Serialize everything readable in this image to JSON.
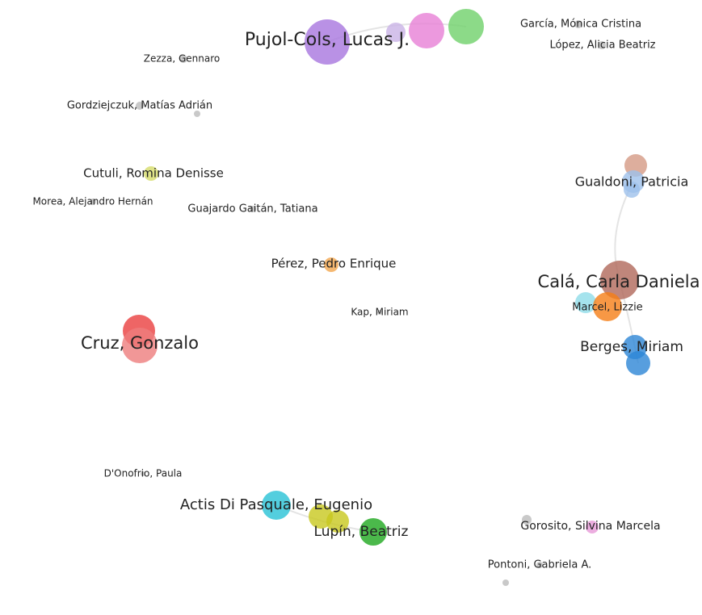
{
  "nodes": [
    {
      "label": "Pujol-Cols, Lucas J."
    },
    {
      "label": "García, Mónica Cristina"
    },
    {
      "label": "López, Alicia Beatriz"
    },
    {
      "label": "Zezza, Gennaro"
    },
    {
      "label": "Gordziejczuk, Matías Adrián"
    },
    {
      "label": "Cutuli, Romina Denisse"
    },
    {
      "label": "Morea, Alejandro Hernán"
    },
    {
      "label": "Guajardo Gaitán, Tatiana"
    },
    {
      "label": "Pérez, Pedro Enrique"
    },
    {
      "label": "Kap, Miriam"
    },
    {
      "label": "Cruz, Gonzalo"
    },
    {
      "label": "Gualdoni, Patricia"
    },
    {
      "label": "Calá, Carla Daniela"
    },
    {
      "label": "Marcel, Lizzie"
    },
    {
      "label": "Berges, Miriam"
    },
    {
      "label": "D'Onofrio, Paula"
    },
    {
      "label": "Actis Di Pasquale, Eugenio"
    },
    {
      "label": "Lupín, Beatriz"
    },
    {
      "label": "Gorosito, Silvina Marcela"
    },
    {
      "label": "Pontoni, Gabriela A."
    }
  ]
}
